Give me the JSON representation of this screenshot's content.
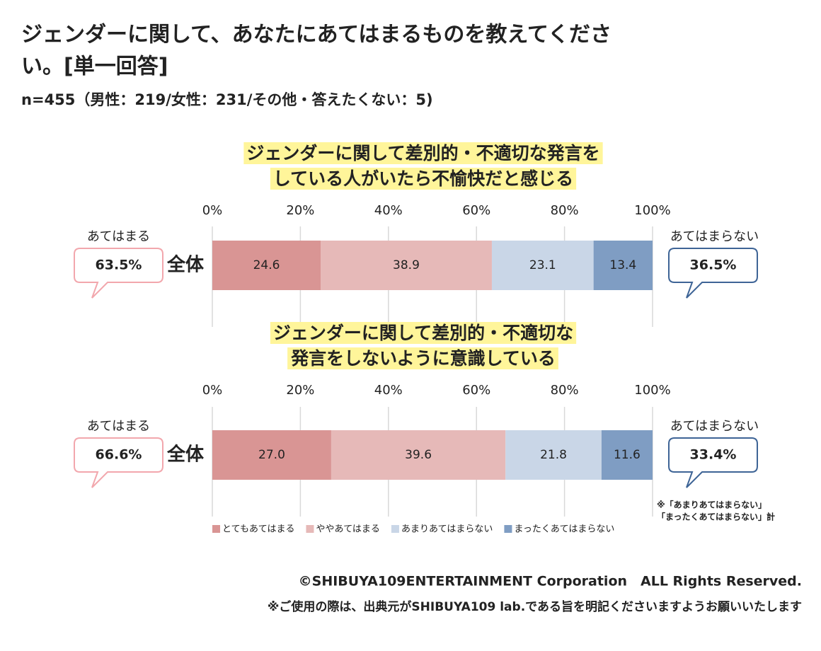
{
  "header": {
    "title": [
      "ジェンダーに関して、あなたにあてはまるものを教えてくださ",
      "い。[単一回答]"
    ],
    "subtitle": "n=455（男性：219/女性：231/その他・答えたくない：5)"
  },
  "chart_data": [
    {
      "type": "bar",
      "orientation": "horizontal",
      "stacked": true,
      "title": [
        "ジェンダーに関して差別的・不適切な発言を",
        "している人がいたら不愉快だと感じる"
      ],
      "categories": [
        "全体"
      ],
      "series": [
        {
          "color": "#d99594",
          "values": [
            24.6
          ],
          "value_labels": [
            "24.6"
          ]
        },
        {
          "color": "#e6b9b8",
          "values": [
            38.9
          ],
          "value_labels": [
            "38.9"
          ]
        },
        {
          "color": "#c9d6e7",
          "values": [
            23.1
          ],
          "value_labels": [
            "23.1"
          ]
        },
        {
          "color": "#7f9dc3",
          "values": [
            13.4
          ],
          "value_labels": [
            "13.4"
          ]
        }
      ],
      "xlim": [
        0,
        100
      ],
      "xticks": [
        {
          "value": 0,
          "label": "0%"
        },
        {
          "value": 20,
          "label": "20%"
        },
        {
          "value": 40,
          "label": "40%"
        },
        {
          "value": 60,
          "label": "60%"
        },
        {
          "value": 80,
          "label": "80%"
        },
        {
          "value": 100,
          "label": "100%"
        }
      ],
      "grid": true,
      "callouts": [
        {
          "label": "あてはまる",
          "text": "63.5%",
          "color": "#f2a7ad",
          "text_color": "#e8141e"
        },
        {
          "label": "あてはまらない",
          "text": "36.5%",
          "color": "#3e6496",
          "text_color": "#222222"
        }
      ]
    },
    {
      "type": "bar",
      "orientation": "horizontal",
      "stacked": true,
      "title": [
        "ジェンダーに関して差別的・不適切な",
        "発言をしないように意識している"
      ],
      "categories": [
        "全体"
      ],
      "series": [
        {
          "name": "とてもあてはまる",
          "color": "#d99594",
          "values": [
            27.0
          ],
          "value_labels": [
            "27.0"
          ]
        },
        {
          "name": "ややあてはまる",
          "color": "#e6b9b8",
          "values": [
            39.6
          ],
          "value_labels": [
            "39.6"
          ]
        },
        {
          "name": "あまりあてはまらない",
          "color": "#c9d6e7",
          "values": [
            21.8
          ],
          "value_labels": [
            "21.8"
          ]
        },
        {
          "name": "まったくあてはまらない",
          "color": "#7f9dc3",
          "values": [
            11.6
          ],
          "value_labels": [
            "11.6"
          ]
        }
      ],
      "xlim": [
        0,
        100
      ],
      "xticks": [
        {
          "value": 0,
          "label": "0%"
        },
        {
          "value": 20,
          "label": "20%"
        },
        {
          "value": 40,
          "label": "40%"
        },
        {
          "value": 60,
          "label": "60%"
        },
        {
          "value": 80,
          "label": "80%"
        },
        {
          "value": 100,
          "label": "100%"
        }
      ],
      "grid": true,
      "callouts": [
        {
          "label": "あてはまる",
          "text": "66.6%",
          "color": "#f2a7ad",
          "text_color": "#e8141e"
        },
        {
          "label": "あてはまらない",
          "text": "33.4%",
          "color": "#3e6496",
          "text_color": "#222222"
        }
      ],
      "note": [
        "※「あまりあてはまらない」",
        "「まったくあてはまらない」計"
      ]
    }
  ],
  "footer": {
    "copyright": "©SHIBUYA109ENTERTAINMENT Corporation　ALL Rights Reserved.",
    "notice": "※ご使用の際は、出典元がSHIBUYA109 lab.である旨を明記くださいますようお願いいたします"
  }
}
